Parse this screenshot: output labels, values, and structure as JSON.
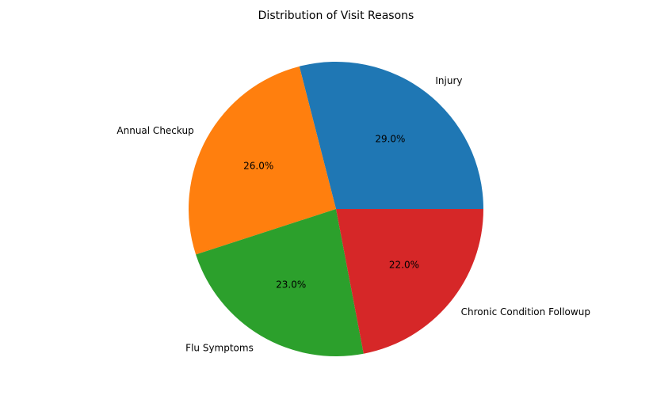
{
  "chart_data": {
    "type": "pie",
    "title": "Distribution of Visit Reasons",
    "categories": [
      "Injury",
      "Annual Checkup",
      "Flu Symptoms",
      "Chronic Condition Followup"
    ],
    "values": [
      29.0,
      26.0,
      23.0,
      22.0
    ],
    "value_labels": [
      "29.0%",
      "26.0%",
      "23.0%",
      "22.0%"
    ],
    "colors": [
      "#1f77b4",
      "#ff7f0e",
      "#2ca02c",
      "#d62728"
    ],
    "start_angle_deg": 0,
    "direction": "counterclockwise",
    "legend": "none"
  }
}
